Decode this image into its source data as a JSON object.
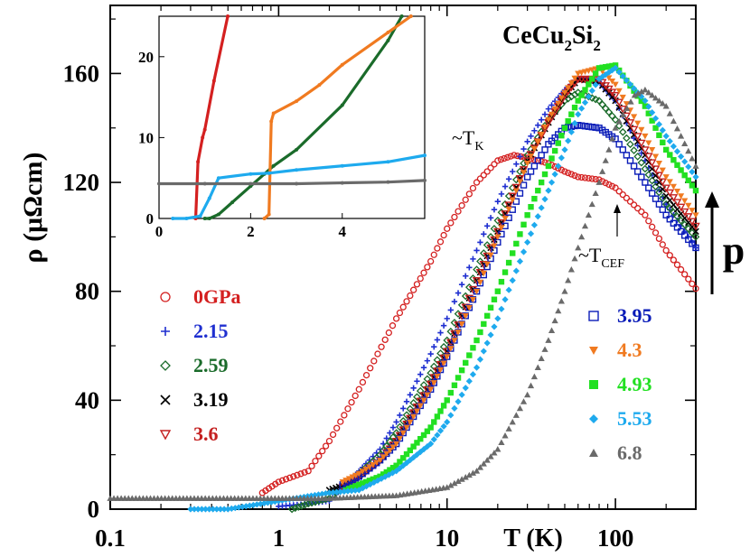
{
  "chart_data": {
    "type": "scatter",
    "title": "CeCu2Si2",
    "formula": {
      "base1": "CeCu",
      "sub1": "2",
      "base2": "Si",
      "sub2": "2"
    },
    "xlabel": "T (K)",
    "ylabel": "ρ (μΩcm)",
    "xscale": "log",
    "xlim": [
      0.1,
      300
    ],
    "ylim": [
      0,
      185
    ],
    "xticks": [
      {
        "value": 0.1,
        "label": "0.1"
      },
      {
        "value": 1,
        "label": "1"
      },
      {
        "value": 10,
        "label": "10"
      },
      {
        "value": 100,
        "label": "100"
      }
    ],
    "yticks": [
      {
        "value": 0,
        "label": "0"
      },
      {
        "value": 40,
        "label": "40"
      },
      {
        "value": 80,
        "label": "80"
      },
      {
        "value": 120,
        "label": "120"
      },
      {
        "value": 160,
        "label": "160"
      }
    ],
    "annotations": {
      "tk": {
        "prefix": "~T",
        "sub": "K"
      },
      "tcef": {
        "prefix": "~T",
        "sub": "CEF"
      },
      "pressure": "p"
    },
    "series": [
      {
        "name": "0GPa",
        "color": "#d42020",
        "marker": "circle-open",
        "x": [
          0.8,
          1,
          1.5,
          2,
          3,
          5,
          8,
          10,
          15,
          20,
          25,
          30,
          40,
          50,
          60,
          80,
          100,
          150,
          200,
          300
        ],
        "y": [
          6,
          10,
          14,
          25,
          44,
          70,
          91,
          103,
          120,
          128,
          130,
          129,
          127,
          124,
          122,
          121,
          118,
          108,
          95,
          81
        ]
      },
      {
        "name": "2.15",
        "color": "#1f2fd0",
        "marker": "plus",
        "x": [
          1,
          1.5,
          2,
          2.5,
          3,
          4,
          5,
          8,
          10,
          15,
          20,
          30,
          40,
          50,
          60,
          80,
          100,
          150,
          200,
          300
        ],
        "y": [
          1,
          2,
          3,
          9,
          14,
          22,
          32,
          57,
          70,
          95,
          113,
          135,
          147,
          154,
          158,
          157,
          150,
          128,
          112,
          96
        ]
      },
      {
        "name": "2.59",
        "color": "#1a6b2a",
        "marker": "diamond-open",
        "x": [
          1.2,
          1.5,
          2,
          2.5,
          3,
          4,
          5,
          8,
          10,
          15,
          20,
          30,
          40,
          50,
          60,
          80,
          100,
          150,
          200,
          300
        ],
        "y": [
          0,
          2,
          4,
          9,
          13,
          20,
          28,
          50,
          62,
          88,
          106,
          130,
          143,
          150,
          153,
          150,
          143,
          125,
          112,
          100
        ]
      },
      {
        "name": "3.19",
        "color": "#000000",
        "marker": "cross",
        "x": [
          2,
          2.5,
          3,
          4,
          5,
          8,
          10,
          15,
          20,
          30,
          40,
          50,
          60,
          80,
          100,
          150,
          200,
          300
        ],
        "y": [
          7,
          9,
          12,
          18,
          25,
          46,
          58,
          84,
          102,
          128,
          142,
          152,
          158,
          157,
          150,
          130,
          115,
          102
        ]
      },
      {
        "name": "3.6",
        "color": "#c42020",
        "marker": "triangle-down-open",
        "x": [
          2.4,
          3,
          4,
          5,
          8,
          10,
          15,
          20,
          30,
          40,
          50,
          60,
          80,
          100,
          150,
          200,
          300
        ],
        "y": [
          8,
          12,
          18,
          25,
          46,
          58,
          84,
          102,
          128,
          142,
          152,
          158,
          158,
          152,
          132,
          118,
          104
        ]
      },
      {
        "name": "3.95",
        "color": "#0a1cb8",
        "marker": "square-open",
        "x": [
          2.4,
          3,
          4,
          5,
          8,
          10,
          15,
          20,
          30,
          40,
          50,
          60,
          80,
          100,
          150,
          200,
          300
        ],
        "y": [
          9,
          12,
          18,
          24,
          44,
          56,
          80,
          98,
          122,
          134,
          140,
          141,
          140,
          136,
          120,
          108,
          96
        ]
      },
      {
        "name": "4.3",
        "color": "#f07a20",
        "marker": "triangle-down",
        "x": [
          2.4,
          3,
          4,
          5,
          8,
          10,
          15,
          20,
          30,
          40,
          50,
          60,
          80,
          100,
          150,
          200,
          300
        ],
        "y": [
          10,
          13,
          18,
          24,
          44,
          56,
          80,
          100,
          127,
          143,
          153,
          160,
          162,
          156,
          137,
          122,
          108
        ]
      },
      {
        "name": "4.93",
        "color": "#22e022",
        "marker": "square",
        "x": [
          2.5,
          3,
          4,
          5,
          8,
          10,
          15,
          20,
          30,
          40,
          50,
          60,
          80,
          100,
          150,
          200,
          300
        ],
        "y": [
          7,
          9,
          12,
          16,
          30,
          40,
          62,
          80,
          108,
          126,
          140,
          150,
          162,
          163,
          148,
          132,
          117
        ]
      },
      {
        "name": "5.53",
        "color": "#1eaaee",
        "marker": "diamond",
        "x": [
          0.3,
          0.5,
          1,
          2,
          3,
          5,
          8,
          10,
          15,
          20,
          30,
          40,
          50,
          60,
          80,
          100,
          150,
          200,
          300
        ],
        "y": [
          0,
          0,
          3,
          6,
          7,
          14,
          24,
          32,
          52,
          70,
          98,
          117,
          132,
          145,
          158,
          162,
          150,
          137,
          122
        ]
      },
      {
        "name": "6.8",
        "color": "#6a6a6a",
        "marker": "triangle-up",
        "x": [
          0.1,
          0.3,
          1,
          2,
          5,
          10,
          15,
          20,
          30,
          40,
          50,
          60,
          80,
          100,
          130,
          150,
          200,
          300
        ],
        "y": [
          4,
          4,
          4,
          4,
          5,
          8,
          14,
          22,
          42,
          62,
          80,
          96,
          120,
          140,
          152,
          154,
          148,
          126
        ]
      }
    ],
    "inset": {
      "xlim": [
        0,
        5.8
      ],
      "ylim": [
        0,
        25
      ],
      "xticks": [
        {
          "value": 0,
          "label": "0"
        },
        {
          "value": 2,
          "label": "2"
        },
        {
          "value": 4,
          "label": "4"
        }
      ],
      "yticks": [
        {
          "value": 0,
          "label": "0"
        },
        {
          "value": 10,
          "label": "10"
        },
        {
          "value": 20,
          "label": "20"
        }
      ],
      "series": [
        {
          "name": "0GPa",
          "color": "#d42020",
          "x": [
            0.8,
            0.85,
            0.95,
            1.0,
            1.2,
            1.5
          ],
          "y": [
            0,
            7,
            10,
            11,
            17,
            25
          ]
        },
        {
          "name": "2.59",
          "color": "#1a6b2a",
          "x": [
            1.0,
            1.1,
            1.3,
            1.6,
            2.0,
            2.3,
            2.5,
            3.0,
            4.0,
            5.0,
            5.3
          ],
          "y": [
            0,
            0,
            0.5,
            2,
            4,
            5.5,
            6.5,
            8.5,
            14,
            22,
            25
          ]
        },
        {
          "name": "4.3",
          "color": "#f07a20",
          "x": [
            2.3,
            2.4,
            2.45,
            2.5,
            3.0,
            3.5,
            4.0,
            5.0,
            5.5
          ],
          "y": [
            0,
            0.5,
            12,
            13,
            14.5,
            16.5,
            19,
            23,
            25
          ]
        },
        {
          "name": "5.53",
          "color": "#1eaaee",
          "x": [
            0.3,
            0.6,
            0.9,
            1.1,
            1.3,
            2.0,
            2.4,
            3.0,
            4.0,
            5.0,
            5.8
          ],
          "y": [
            0,
            0,
            0.3,
            2.5,
            5,
            5.5,
            5.6,
            6,
            6.5,
            7,
            7.8
          ]
        },
        {
          "name": "6.8",
          "color": "#6a6a6a",
          "x": [
            0,
            1,
            2,
            3,
            4,
            5,
            5.8
          ],
          "y": [
            4.3,
            4.3,
            4.3,
            4.3,
            4.4,
            4.5,
            4.7
          ]
        }
      ]
    }
  }
}
